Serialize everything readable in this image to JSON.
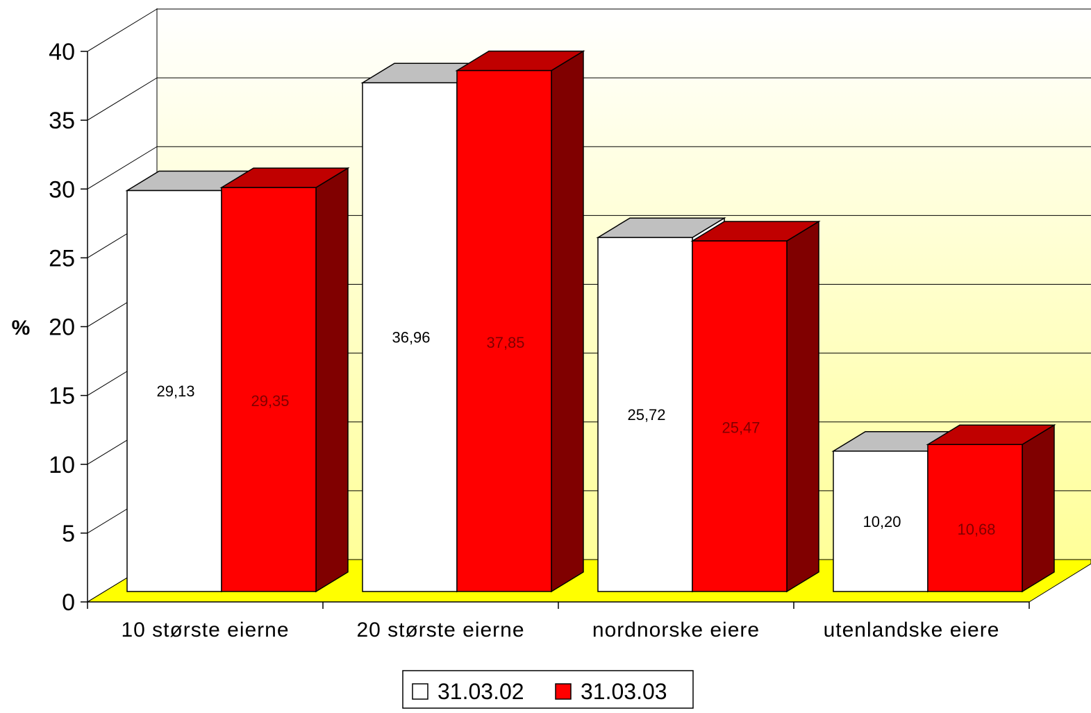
{
  "chart_data": {
    "type": "bar",
    "ylabel": "%",
    "ylim": [
      0,
      40
    ],
    "yticks": [
      "0",
      "5",
      "10",
      "15",
      "20",
      "25",
      "30",
      "35",
      "40"
    ],
    "categories": [
      "10 største eierne",
      "20 største eierne",
      "nordnorske eiere",
      "utenlandske eiere"
    ],
    "series": [
      {
        "name": "31.03.02",
        "values": [
          29.13,
          36.96,
          25.72,
          10.2
        ],
        "labels": [
          "29,13",
          "36,96",
          "25,72",
          "10,20"
        ],
        "color": "#ffffff"
      },
      {
        "name": "31.03.03",
        "values": [
          29.35,
          37.85,
          25.47,
          10.68
        ],
        "labels": [
          "29,35",
          "37,85",
          "25,47",
          "10,68"
        ],
        "color": "#ff0000"
      }
    ],
    "grid": true,
    "legend_position": "bottom",
    "colors": {
      "floor": "#ffff00",
      "wall_top": "#ffffff",
      "wall_bottom": "#ffff99",
      "white_bar_top": "#c0c0c0",
      "red_bar_top": "#c00000",
      "red_bar_side": "#800000"
    }
  }
}
